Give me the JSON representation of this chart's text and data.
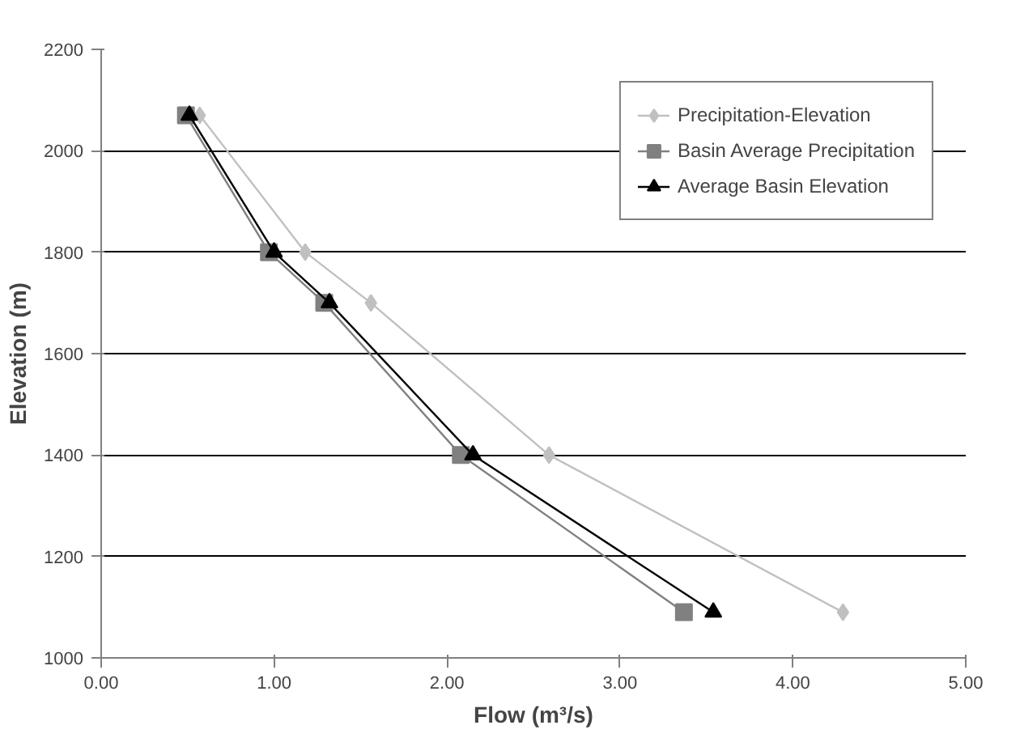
{
  "chart_data": {
    "type": "line",
    "xlabel": "Flow (m³/s)",
    "ylabel": "Elevation (m)",
    "xlim": [
      0,
      5
    ],
    "xticks": [
      {
        "value": 0,
        "label": "0.00"
      },
      {
        "value": 1,
        "label": "1.00"
      },
      {
        "value": 2,
        "label": "2.00"
      },
      {
        "value": 3,
        "label": "3.00"
      },
      {
        "value": 4,
        "label": "4.00"
      },
      {
        "value": 5,
        "label": "5.00"
      }
    ],
    "ylim": [
      1000,
      2200
    ],
    "yticks": [
      1000,
      1200,
      1400,
      1600,
      1800,
      2000,
      2200
    ],
    "grid": "y",
    "legend": "top right",
    "series": [
      {
        "name": "Precipitation-Elevation",
        "color": "#c0c0c0",
        "marker": "diamond",
        "x": [
          0.57,
          1.18,
          1.56,
          2.59,
          4.29
        ],
        "values": [
          2070,
          1800,
          1700,
          1400,
          1090
        ]
      },
      {
        "name": "Basin Average Precipitation",
        "color": "#808080",
        "marker": "square",
        "x": [
          0.49,
          0.97,
          1.29,
          2.08,
          3.37
        ],
        "values": [
          2070,
          1800,
          1700,
          1400,
          1090
        ]
      },
      {
        "name": "Average Basin Elevation",
        "color": "#000000",
        "marker": "triangle",
        "x": [
          0.51,
          1.0,
          1.32,
          2.15,
          3.54
        ],
        "values": [
          2070,
          1800,
          1700,
          1400,
          1090
        ]
      }
    ]
  }
}
